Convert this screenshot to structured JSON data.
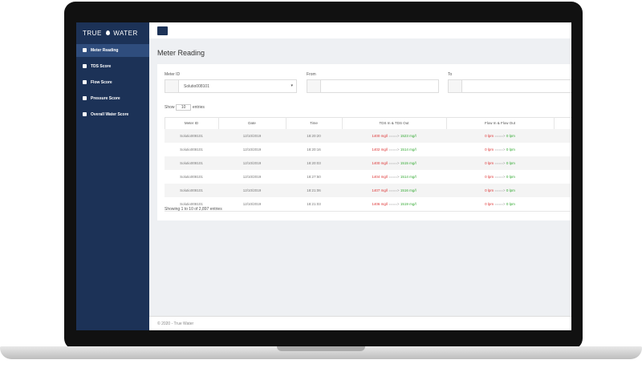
{
  "brand": {
    "left": "TRUE",
    "right": "WATER"
  },
  "nav": [
    "Meter Reading",
    "TDS Score",
    "Flow Score",
    "Pressure Score",
    "Overall Water Score"
  ],
  "page_title": "Meter Reading",
  "filters": {
    "meter_label": "Meter ID",
    "meter_value": "Solutio008101",
    "from_label": "From",
    "to_label": "To"
  },
  "length": {
    "before": "Show",
    "value": "10",
    "after": "entries"
  },
  "table": {
    "columns": [
      "Meter ID",
      "Date",
      "Time",
      "TDS In & TDS Out",
      "Flow In & Flow Out"
    ],
    "arrow": "====>",
    "rows": [
      {
        "meter_id": "Solutio008101",
        "date": "12/10/2019",
        "time": "18:20:20",
        "tds_in": "1400 mg/l",
        "tds_out": "1523 mg/l",
        "flow_in": "0 lpm",
        "flow_out": "0 lpm"
      },
      {
        "meter_id": "Solutio008101",
        "date": "12/10/2019",
        "time": "18:20:16",
        "tds_in": "1402 mg/l",
        "tds_out": "1514 mg/l",
        "flow_in": "0 lpm",
        "flow_out": "0 lpm"
      },
      {
        "meter_id": "Solutio008101",
        "date": "12/10/2019",
        "time": "18:20:03",
        "tds_in": "1400 mg/l",
        "tds_out": "1515 mg/l",
        "flow_in": "0 lpm",
        "flow_out": "0 lpm"
      },
      {
        "meter_id": "Solutio008101",
        "date": "12/10/2019",
        "time": "18:27:50",
        "tds_in": "1404 mg/l",
        "tds_out": "1514 mg/l",
        "flow_in": "0 lpm",
        "flow_out": "0 lpm"
      },
      {
        "meter_id": "Solutio008101",
        "date": "12/10/2019",
        "time": "18:21:06",
        "tds_in": "1407 mg/l",
        "tds_out": "1516 mg/l",
        "flow_in": "0 lpm",
        "flow_out": "0 lpm"
      },
      {
        "meter_id": "Solutio008101",
        "date": "12/10/2019",
        "time": "18:21:03",
        "tds_in": "1406 mg/l",
        "tds_out": "1519 mg/l",
        "flow_in": "0 lpm",
        "flow_out": "0 lpm"
      }
    ]
  },
  "info": "Showing 1 to 10 of 2,897 entries",
  "footer": "© 2020 - True Water"
}
